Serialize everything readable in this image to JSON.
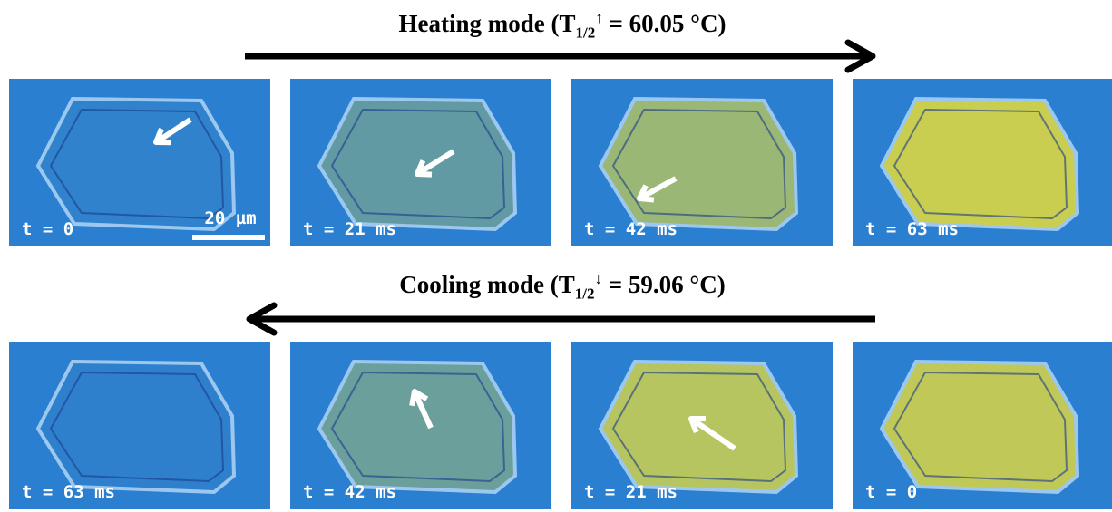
{
  "rows": [
    {
      "title": {
        "prefix": "Heating mode (T",
        "sub": "1/2",
        "sup": "↑",
        "suffix": " = 60.05 °C)"
      },
      "panels": [
        {
          "label": "t = 0"
        },
        {
          "label": "t = 21 ms"
        },
        {
          "label": "t = 42 ms"
        },
        {
          "label": "t = 63 ms"
        }
      ]
    },
    {
      "title": {
        "prefix": "Cooling mode (T",
        "sub": "1/2",
        "sup": "↓",
        "suffix": " = 59.06 °C)"
      },
      "panels": [
        {
          "label": "t = 63 ms"
        },
        {
          "label": "t = 42 ms"
        },
        {
          "label": "t = 21 ms"
        },
        {
          "label": "t = 0"
        }
      ]
    }
  ],
  "scale_bar": "20 µm"
}
